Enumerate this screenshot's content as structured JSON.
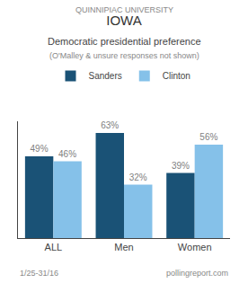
{
  "chart_data": {
    "type": "bar",
    "title": "IOWA",
    "subtitle": "Democratic presidential preference",
    "annotations": [
      "QUINNIPIAC UNIVERSITY",
      "(O'Malley & unsure responses not shown)",
      "1/25-31/16",
      "pollingreport.com"
    ],
    "categories": [
      "ALL",
      "Men",
      "Women"
    ],
    "series": [
      {
        "name": "Sanders",
        "color": "#1a5276",
        "values": [
          49,
          63,
          39
        ],
        "value_labels": [
          "49%",
          "63%",
          "39%"
        ]
      },
      {
        "name": "Clinton",
        "color": "#85c1e9",
        "values": [
          46,
          32,
          56
        ],
        "value_labels": [
          "46%",
          "32%",
          "56%"
        ]
      }
    ],
    "ylim": [
      0,
      70
    ],
    "data_labels": true,
    "tick_labels": "x",
    "grid": false,
    "legend": "upper center"
  }
}
